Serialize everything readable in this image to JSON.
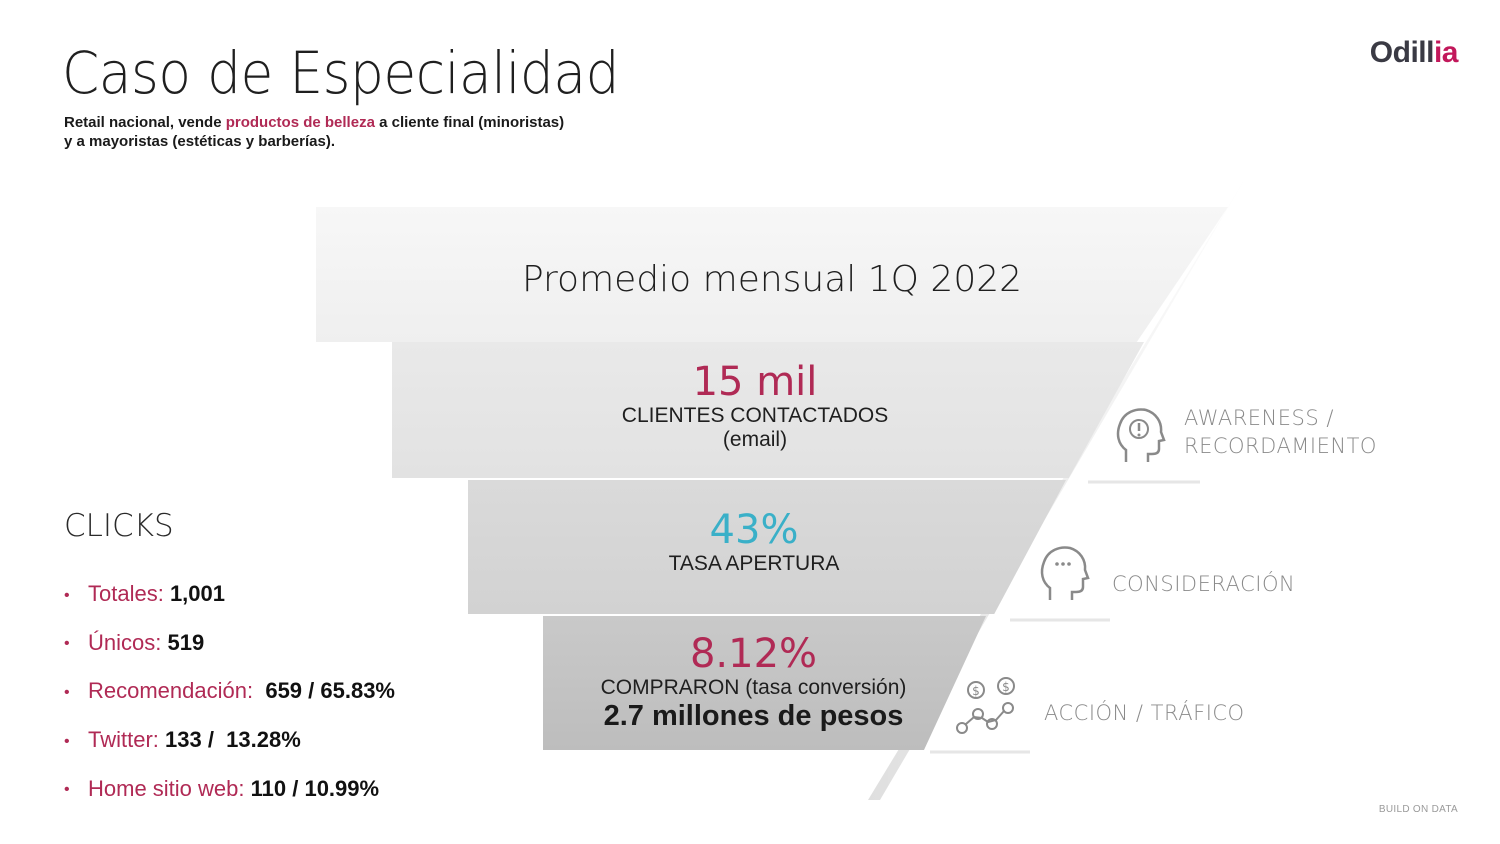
{
  "header": {
    "title": "Caso de Especialidad",
    "subtitle_part1": "Retail nacional, vende ",
    "subtitle_highlight": "productos de belleza",
    "subtitle_part2": " a cliente final (minoristas)",
    "subtitle_line2": "y a mayoristas (estéticas y barberías)."
  },
  "logo": {
    "main": "Odill",
    "accent": "ia"
  },
  "funnel": {
    "heading": "Promedio mensual 1Q 2022",
    "stage1": {
      "value": "15 mil",
      "label": "CLIENTES CONTACTADOS",
      "sublabel": "(email)"
    },
    "stage2": {
      "value": "43%",
      "label": "TASA APERTURA"
    },
    "stage3": {
      "value": "8.12%",
      "label": "COMPRARON (tasa conversión)",
      "extra": "2.7 millones de pesos"
    }
  },
  "stages": {
    "awareness_line1": "AWARENESS /",
    "awareness_line2": "RECORDAMIENTO",
    "consideration": "CONSIDERACIÓN",
    "action": "ACCIÓN / TRÁFICO"
  },
  "clicks": {
    "title": "CLICKS",
    "items": [
      {
        "label": "Totales: ",
        "value": "1,001"
      },
      {
        "label": "Únicos: ",
        "value": "519"
      },
      {
        "label": "Recomendación:  ",
        "value": "659 / 65.83%"
      },
      {
        "label": "Twitter: ",
        "value": "133 /  13.28%"
      },
      {
        "label": "Home sitio web: ",
        "value": "110 / 10.99%"
      }
    ]
  },
  "footer": "BUILD ON DATA",
  "colors": {
    "accent": "#b02a55",
    "cyan": "#3ab0c8"
  },
  "icons": [
    "head-exclamation-icon",
    "head-thinking-icon",
    "money-chart-icon"
  ]
}
